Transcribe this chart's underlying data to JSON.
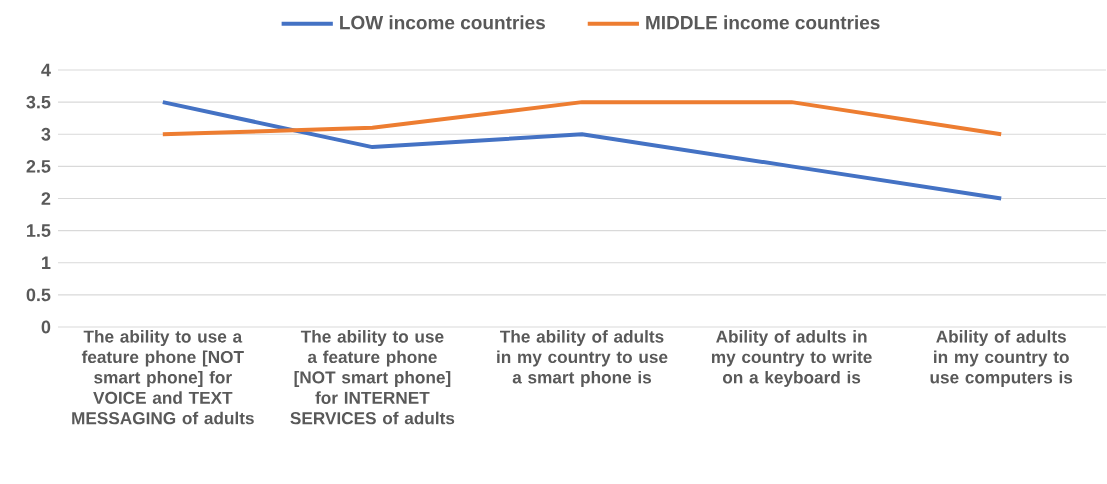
{
  "chart_data": {
    "type": "line",
    "categories": [
      "The ability to use a feature phone [NOT smart phone] for VOICE and TEXT MESSAGING of adults",
      "The ability to use a feature phone [NOT smart phone] for INTERNET SERVICES of adults",
      "The ability of adults in my country to use a smart phone is",
      "Ability of adults in my country to write on a keyboard is",
      "Ability of adults in my country to use computers is"
    ],
    "series": [
      {
        "name": "LOW income countries",
        "color": "#4472c4",
        "values": [
          3.5,
          2.8,
          3.0,
          2.5,
          2.0
        ]
      },
      {
        "name": "MIDDLE income countries",
        "color": "#ed7d31",
        "values": [
          3.0,
          3.1,
          3.5,
          3.5,
          3.0
        ]
      }
    ],
    "ylim": [
      0,
      4
    ],
    "yticks": [
      0,
      0.5,
      1,
      1.5,
      2,
      2.5,
      3,
      3.5,
      4
    ],
    "grid": "y",
    "legend": "top",
    "marker": "none",
    "line_style": "solid"
  }
}
